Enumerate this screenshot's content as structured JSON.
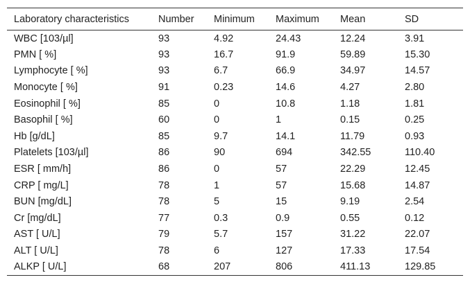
{
  "table": {
    "columns": [
      "Laboratory characteristics",
      "Number",
      "Minimum",
      "Maximum",
      "Mean",
      "SD"
    ],
    "rows": [
      [
        "WBC [103/µl]",
        "93",
        "4.92",
        "24.43",
        "12.24",
        "3.91"
      ],
      [
        "PMN [ %]",
        "93",
        "16.7",
        "91.9",
        "59.89",
        "15.30"
      ],
      [
        "Lymphocyte [ %]",
        "93",
        "6.7",
        "66.9",
        "34.97",
        "14.57"
      ],
      [
        "Monocyte [ %]",
        "91",
        "0.23",
        "14.6",
        "4.27",
        "2.80"
      ],
      [
        "Eosinophil [ %]",
        "85",
        "0",
        "10.8",
        "1.18",
        "1.81"
      ],
      [
        "Basophil [ %]",
        "60",
        "0",
        "1",
        "0.15",
        "0.25"
      ],
      [
        "Hb [g/dL]",
        "85",
        "9.7",
        "14.1",
        "11.79",
        "0.93"
      ],
      [
        "Platelets [103/µl]",
        "86",
        "90",
        "694",
        "342.55",
        "110.40"
      ],
      [
        "ESR [ mm/h]",
        "86",
        "0",
        "57",
        "22.29",
        "12.45"
      ],
      [
        "CRP [ mg/L]",
        "78",
        "1",
        "57",
        "15.68",
        "14.87"
      ],
      [
        "BUN [mg/dL]",
        "78",
        "5",
        "15",
        "9.19",
        "2.54"
      ],
      [
        "Cr [mg/dL]",
        "77",
        "0.3",
        "0.9",
        "0.55",
        "0.12"
      ],
      [
        "AST [ U/L]",
        "79",
        "5.7",
        "157",
        "31.22",
        "22.07"
      ],
      [
        "ALT [ U/L]",
        "78",
        "6",
        "127",
        "17.33",
        "17.54"
      ],
      [
        "ALKP [ U/L]",
        "68",
        "207",
        "806",
        "411.13",
        "129.85"
      ]
    ]
  }
}
